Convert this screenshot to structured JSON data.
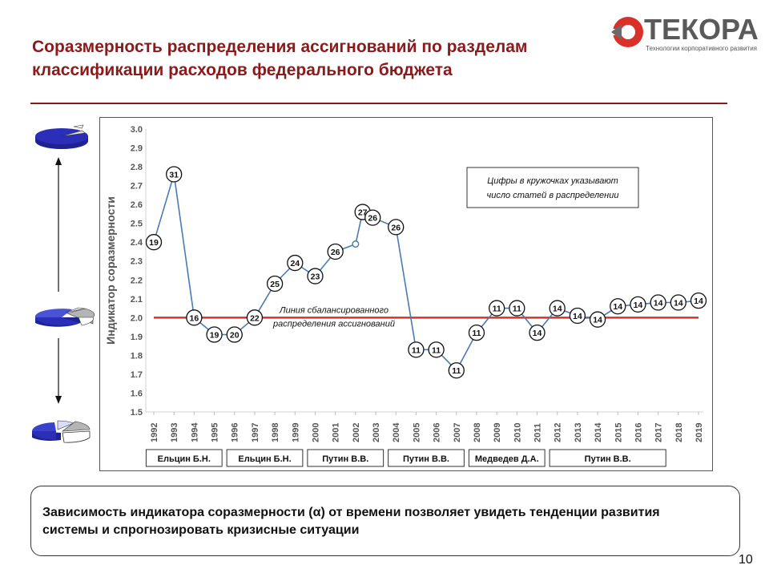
{
  "slide": {
    "title": "Соразмерность распределения ассигнований по разделам классификации расходов федерального бюджета",
    "page_number": "10"
  },
  "logo": {
    "name": "ТЕКОРА",
    "tagline": "Технологии корпоративного развития"
  },
  "conclusion": {
    "text": "Зависимость индикатора соразмерности (α) от времени позволяет увидеть тенденции развития системы и спрогнозировать кризисные ситуации"
  },
  "colors": {
    "title": "#8b1a1a",
    "series_line": "#4a7ab5",
    "balance_line": "#d9302a",
    "pie_blue": "#2b2fb8",
    "pie_gray": "#b5b5b5"
  },
  "chart_data": {
    "type": "line",
    "title": "",
    "ylabel": "Индикатор соразмерности",
    "xlabel": "",
    "ylim": [
      1.5,
      3.0
    ],
    "y_ticks": [
      "1.5",
      "1.6",
      "1.7",
      "1.8",
      "1.9",
      "2.0",
      "2.1",
      "2.2",
      "2.3",
      "2.4",
      "2.5",
      "2.6",
      "2.7",
      "2.8",
      "2.9",
      "3.0"
    ],
    "x_ticks": [
      "1992",
      "1993",
      "1994",
      "1995",
      "1996",
      "1997",
      "1998",
      "1999",
      "2000",
      "2001",
      "2002",
      "2003",
      "2004",
      "2005",
      "2006",
      "2007",
      "2008",
      "2009",
      "2010",
      "2011",
      "2012",
      "2013",
      "2014",
      "2015",
      "2016",
      "2017",
      "2018",
      "2019"
    ],
    "grid": false,
    "series": [
      {
        "points": [
          {
            "x": 1992.0,
            "y": 2.4,
            "label": "19"
          },
          {
            "x": 1993.0,
            "y": 2.76,
            "label": "31"
          },
          {
            "x": 1994.0,
            "y": 2.0,
            "label": "16"
          },
          {
            "x": 1995.0,
            "y": 1.91,
            "label": "19"
          },
          {
            "x": 1996.0,
            "y": 1.91,
            "label": "20"
          },
          {
            "x": 1997.0,
            "y": 2.0,
            "label": "22"
          },
          {
            "x": 1998.0,
            "y": 2.18,
            "label": "25"
          },
          {
            "x": 1999.0,
            "y": 2.29,
            "label": "24"
          },
          {
            "x": 2000.0,
            "y": 2.22,
            "label": "23"
          },
          {
            "x": 2001.0,
            "y": 2.35,
            "label": "26"
          },
          {
            "x": 2002.0,
            "y": 2.39,
            "label": ""
          },
          {
            "x": 2002.35,
            "y": 2.56,
            "label": "27"
          },
          {
            "x": 2002.85,
            "y": 2.53,
            "label": "26"
          },
          {
            "x": 2004.0,
            "y": 2.48,
            "label": "26"
          },
          {
            "x": 2005.0,
            "y": 1.83,
            "label": "11"
          },
          {
            "x": 2006.0,
            "y": 1.83,
            "label": "11"
          },
          {
            "x": 2007.0,
            "y": 1.72,
            "label": "11"
          },
          {
            "x": 2008.0,
            "y": 1.92,
            "label": "11"
          },
          {
            "x": 2009.0,
            "y": 2.05,
            "label": "11"
          },
          {
            "x": 2010.0,
            "y": 2.05,
            "label": "11"
          },
          {
            "x": 2011.0,
            "y": 1.92,
            "label": "14"
          },
          {
            "x": 2012.0,
            "y": 2.05,
            "label": "14"
          },
          {
            "x": 2013.0,
            "y": 2.01,
            "label": "14"
          },
          {
            "x": 2014.0,
            "y": 1.99,
            "label": "14"
          },
          {
            "x": 2015.0,
            "y": 2.06,
            "label": "14"
          },
          {
            "x": 2016.0,
            "y": 2.07,
            "label": "14"
          },
          {
            "x": 2017.0,
            "y": 2.08,
            "label": "14"
          },
          {
            "x": 2018.0,
            "y": 2.08,
            "label": "14"
          },
          {
            "x": 2019.0,
            "y": 2.09,
            "label": "14"
          }
        ]
      }
    ],
    "reference_line": {
      "y": 2.0,
      "label_line1": "Линия  сбалансированного",
      "label_line2": "распределения ассигнований"
    },
    "annotation": {
      "line1": "Цифры  в кружочках указывают",
      "line2": "число статей в распределении"
    },
    "periods": [
      {
        "label": "Ельцин Б.Н.",
        "from": 1992,
        "to": 1995
      },
      {
        "label": "Ельцин Б.Н.",
        "from": 1996,
        "to": 1999
      },
      {
        "label": "Путин В.В.",
        "from": 2000,
        "to": 2003
      },
      {
        "label": "Путин В.В.",
        "from": 2004,
        "to": 2007
      },
      {
        "label": "Медведев Д.А.",
        "from": 2008,
        "to": 2011
      },
      {
        "label": "Путин  В.В.",
        "from": 2012,
        "to": 2017
      }
    ]
  }
}
